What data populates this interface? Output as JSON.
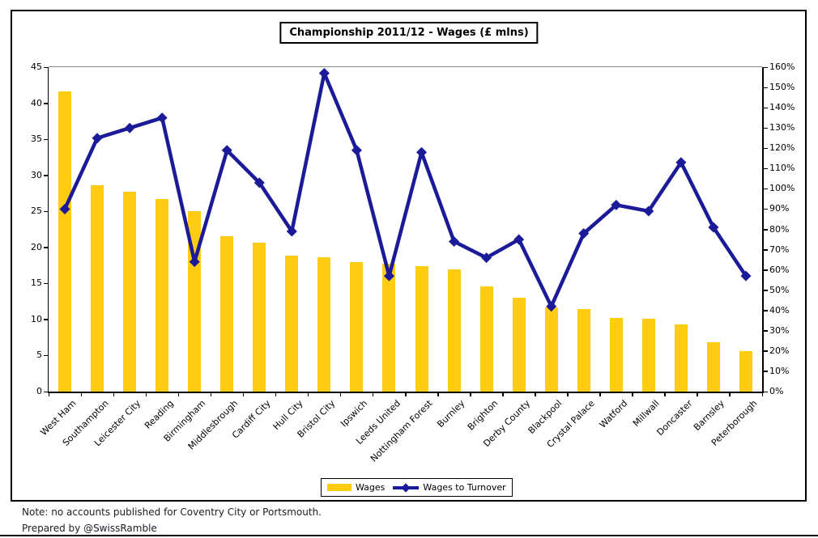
{
  "notes": {
    "line1": "Note: no accounts published for Coventry City or Portsmouth.",
    "line2": "Prepared by @SwissRamble"
  },
  "chart_data": {
    "type": "combo-bar-line",
    "title": "Championship 2011/12 - Wages (£ mlns)",
    "categories": [
      "West Ham",
      "Southampton",
      "Leicester City",
      "Reading",
      "Birmingham",
      "Middlesbrough",
      "Cardiff City",
      "Hull City",
      "Bristol City",
      "Ipswich",
      "Leeds United",
      "Nottingham Forest",
      "Burnley",
      "Brighton",
      "Derby County",
      "Blackpool",
      "Crystal Palace",
      "Watford",
      "Millwall",
      "Doncaster",
      "Barnsley",
      "Peterborough"
    ],
    "series": [
      {
        "name": "Wages",
        "type": "bar",
        "axis": "left",
        "color": "#FFCC11",
        "values": [
          41.6,
          28.6,
          27.7,
          26.7,
          25.0,
          21.5,
          20.7,
          18.9,
          18.6,
          18.0,
          17.7,
          17.4,
          17.0,
          14.6,
          13.0,
          11.7,
          11.5,
          10.2,
          10.1,
          9.3,
          6.9,
          5.6
        ]
      },
      {
        "name": "Wages to Turnover",
        "type": "line",
        "axis": "right",
        "color": "#1B1B99",
        "marker": "diamond",
        "values_pct": [
          90,
          125,
          130,
          135,
          64,
          119,
          103,
          79,
          157,
          119,
          57,
          118,
          74,
          66,
          75,
          42,
          78,
          92,
          89,
          113,
          81,
          57
        ]
      }
    ],
    "left_axis": {
      "min": 0,
      "max": 45,
      "step": 5,
      "tick_labels": [
        "0",
        "5",
        "10",
        "15",
        "20",
        "25",
        "30",
        "35",
        "40",
        "45"
      ]
    },
    "right_axis": {
      "min": 0,
      "max": 160,
      "step": 10,
      "tick_labels": [
        "0%",
        "10%",
        "20%",
        "30%",
        "40%",
        "50%",
        "60%",
        "70%",
        "80%",
        "90%",
        "100%",
        "110%",
        "120%",
        "130%",
        "140%",
        "150%",
        "160%"
      ]
    },
    "legend": {
      "position": "bottom",
      "entries": [
        "Wages",
        "Wages to Turnover"
      ]
    },
    "grid": "top-boundary-line-only",
    "ylim_left": [
      0,
      45
    ],
    "ylim_right_pct": [
      0,
      160
    ]
  }
}
